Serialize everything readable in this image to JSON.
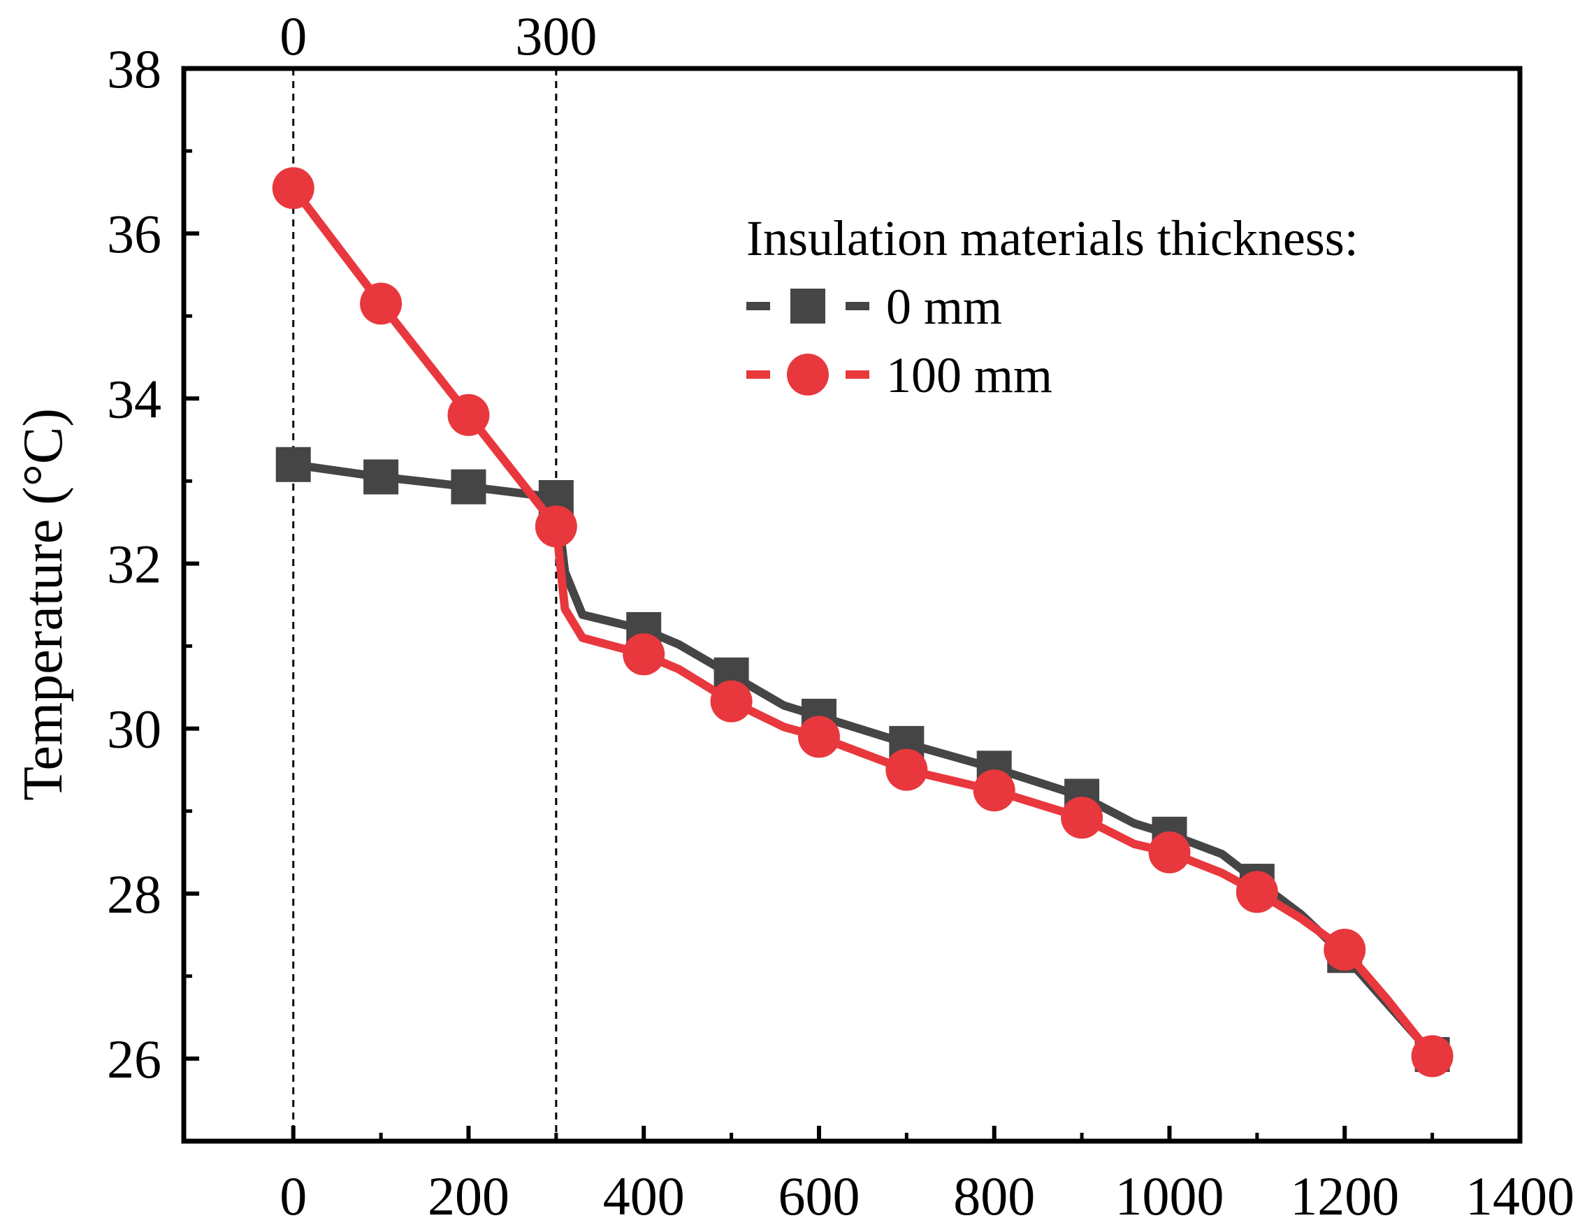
{
  "chart_data": {
    "type": "line",
    "xlabel": "",
    "ylabel": "Temperature (°C)",
    "xlim": [
      -125,
      1400
    ],
    "ylim": [
      25,
      38
    ],
    "x_ticks": [
      0,
      200,
      400,
      600,
      800,
      1000,
      1200,
      1400
    ],
    "y_ticks": [
      26,
      28,
      30,
      32,
      34,
      36,
      38
    ],
    "top_annotations": [
      {
        "x": 0,
        "label": "0"
      },
      {
        "x": 300,
        "label": "300"
      }
    ],
    "legend": {
      "title": "Insulation materials thickness:",
      "position": "top-right"
    },
    "series": [
      {
        "name": "0 mm",
        "color": "#454545",
        "marker": "square",
        "x": [
          0,
          100,
          200,
          300,
          400,
          500,
          600,
          700,
          800,
          900,
          1000,
          1100,
          1200,
          1300
        ],
        "y": [
          33.2,
          33.05,
          32.93,
          32.8,
          31.2,
          30.65,
          30.15,
          29.82,
          29.52,
          29.18,
          28.72,
          28.15,
          27.25,
          26.05
        ],
        "path_x": [
          0,
          100,
          200,
          300,
          310,
          330,
          400,
          440,
          500,
          560,
          600,
          700,
          800,
          900,
          960,
          1000,
          1060,
          1100,
          1150,
          1200,
          1250,
          1300
        ],
        "path_y": [
          33.2,
          33.05,
          32.93,
          32.8,
          31.9,
          31.38,
          31.2,
          31.02,
          30.65,
          30.28,
          30.15,
          29.82,
          29.52,
          29.18,
          28.85,
          28.72,
          28.48,
          28.15,
          27.75,
          27.25,
          26.65,
          26.05
        ]
      },
      {
        "name": "100 mm",
        "color": "#E8383D",
        "marker": "circle",
        "x": [
          0,
          100,
          200,
          300,
          400,
          500,
          600,
          700,
          800,
          900,
          1000,
          1100,
          1200,
          1300
        ],
        "y": [
          36.55,
          35.15,
          33.8,
          32.45,
          30.9,
          30.33,
          29.9,
          29.5,
          29.25,
          28.92,
          28.5,
          28.02,
          27.32,
          26.03
        ],
        "path_x": [
          0,
          100,
          200,
          300,
          310,
          330,
          400,
          440,
          500,
          560,
          600,
          700,
          800,
          900,
          960,
          1000,
          1060,
          1100,
          1150,
          1200,
          1250,
          1300
        ],
        "path_y": [
          36.55,
          35.15,
          33.8,
          32.45,
          31.45,
          31.1,
          30.9,
          30.72,
          30.33,
          30.02,
          29.9,
          29.5,
          29.25,
          28.92,
          28.6,
          28.5,
          28.25,
          28.02,
          27.7,
          27.32,
          26.7,
          26.03
        ]
      }
    ]
  }
}
